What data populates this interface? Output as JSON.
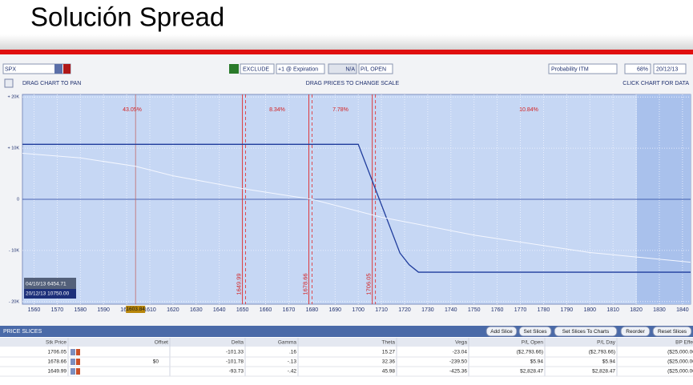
{
  "header": {
    "title": "Solución Spread"
  },
  "toolbar": {
    "symbol": "SPX",
    "exclude": "EXCLUDE",
    "expiration": "+1 @ Expiration",
    "na": "N/A",
    "pl": "P/L OPEN",
    "probability": "Probability ITM",
    "percent": "68%",
    "date": "20/12/13",
    "pan": "DRAG CHART TO PAN",
    "scale": "DRAG PRICES TO CHANGE SCALE",
    "click": "CLICK CHART FOR DATA"
  },
  "chart_data": {
    "type": "line",
    "xlim": [
      1555,
      1843.5
    ],
    "xticks": [
      1560,
      1570,
      1580,
      1590,
      1600,
      1610,
      1620,
      1630,
      1640,
      1650,
      1660,
      1670,
      1680,
      1690,
      1700,
      1710,
      1720,
      1730,
      1740,
      1750,
      1760,
      1770,
      1780,
      1790,
      1800,
      1810,
      1820,
      1830,
      1840
    ],
    "ylim": [
      -20500,
      20500
    ],
    "yticks": [
      {
        "value": 20000,
        "label": "+ 20K"
      },
      {
        "value": 10000,
        "label": "+ 10K"
      },
      0,
      {
        "value": -10000,
        "label": "- 10K"
      },
      {
        "value": -20000,
        "label": "- 20K"
      }
    ],
    "grid": true,
    "series": [
      {
        "color": "#1f3c9c",
        "x": [
          1555,
          1700,
          1718,
          1722,
          1726,
          1843.5
        ],
        "values": [
          10750,
          10750,
          -10500,
          -12800,
          -14250,
          -14250
        ]
      },
      {
        "color": "#f4f7ff",
        "x": [
          1555,
          1580,
          1603.84,
          1620,
          1650,
          1680,
          1710,
          1750,
          1800,
          1843.5
        ],
        "values": [
          9000,
          8100,
          6454.71,
          4600,
          2100,
          0,
          -3500,
          -7000,
          -10400,
          -12300
        ]
      }
    ],
    "slices": [
      1649.99,
      1678.66,
      1706.05
    ],
    "current_price": 1603.84,
    "probabilities": [
      "43.05%",
      "8.34%",
      "7.78%",
      "10.84%"
    ],
    "tooltip": [
      "04/10/13 6454.71",
      "20/12/13 10750.00"
    ]
  },
  "slices": {
    "title": "PRICE SLICES",
    "buttons": [
      "Add Slice",
      "Set Slices",
      "Set Slices To Charts",
      "Reorder",
      "Reset Slices"
    ],
    "columns": [
      "Stk Price",
      "Offset",
      "Delta",
      "Gamma",
      "Theta",
      "Vega",
      "P/L Open",
      "P/L Day",
      "BP Effect"
    ],
    "rows": [
      [
        "1706.05",
        "",
        "-101.33",
        ".16",
        "15.27",
        "-23.04",
        "($2,793.66)",
        "($2,793.66)",
        "($25,000.00)"
      ],
      [
        "1678.66",
        "$0",
        "-101.78",
        "-.13",
        "32.36",
        "-239.50",
        "$5.94",
        "$5.94",
        "($25,000.00)"
      ],
      [
        "1649.99",
        "",
        "-93.73",
        "-.42",
        "45.98",
        "-425.36",
        "$2,828.47",
        "$2,828.47",
        "($25,000.00)"
      ]
    ]
  }
}
